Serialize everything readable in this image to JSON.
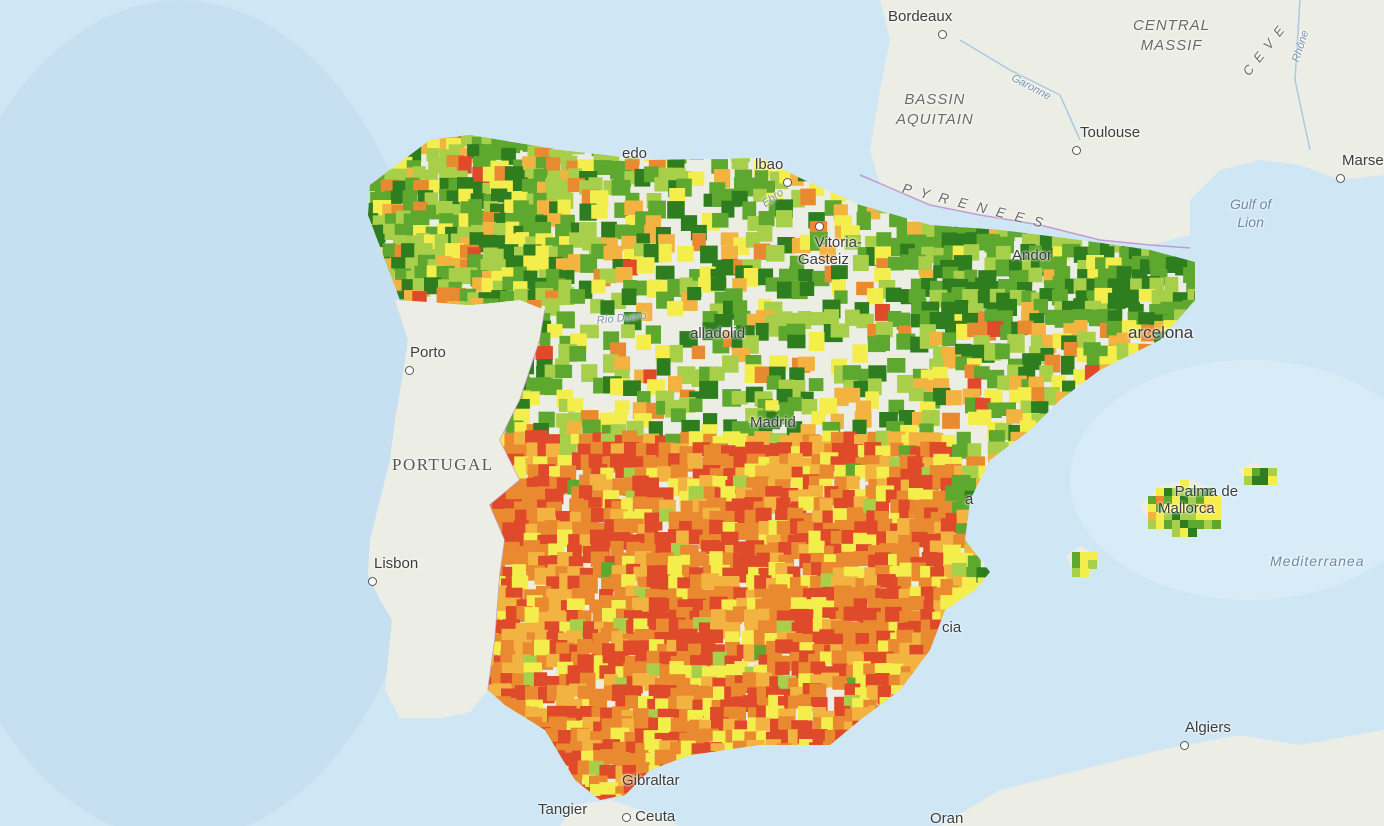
{
  "map": {
    "places": {
      "bordeaux": "Bordeaux",
      "toulouse": "Toulouse",
      "marseille_partial": "Marse",
      "vitoria": "Vitoria-\nGasteiz",
      "bilbao_partial": "lbao",
      "oviedo_partial": "edo",
      "porto": "Porto",
      "valladolid_partial": "alladolid",
      "madrid_partial": "Madrid",
      "barcelona_partial": "arcelona",
      "andorra_partial": "Andor",
      "palma": "Palma de\nMallorca",
      "lisbon": "Lisbon",
      "algiers": "Algiers",
      "tangier": "Tangier",
      "ceuta": "Ceuta",
      "gibraltar_partial": "Gibraltar",
      "oran": "Oran",
      "valencia_partial": "a",
      "murcia_partial": "cia"
    },
    "regions": {
      "central_massif": "CENTRAL\nMASSIF",
      "bassin_aquitain": "BASSIN\nAQUITAIN",
      "pyrenees": "P Y R E N E E S",
      "cevennes": "C E V E"
    },
    "countries": {
      "portugal": "PORTUGAL"
    },
    "water": {
      "gulf_of_lion": "Gulf of\nLion",
      "mediterranean": "Mediterranea"
    },
    "rivers": {
      "garonne": "Garonne",
      "duero": "Río Duero",
      "ebro": "Ebro",
      "rhone": "Rhône"
    },
    "colors": {
      "sea": "#cfe6f5",
      "land": "#eceee6",
      "dark_green": "#2e7d1f",
      "green": "#5fa82f",
      "light_green": "#a7cf4a",
      "yellow": "#f3ee4c",
      "light_orange": "#f3b340",
      "orange": "#ea8a30",
      "red": "#de4a2a"
    },
    "choropleth_classes": [
      "dark_green",
      "green",
      "light_green",
      "yellow",
      "light_orange",
      "orange",
      "red"
    ]
  }
}
